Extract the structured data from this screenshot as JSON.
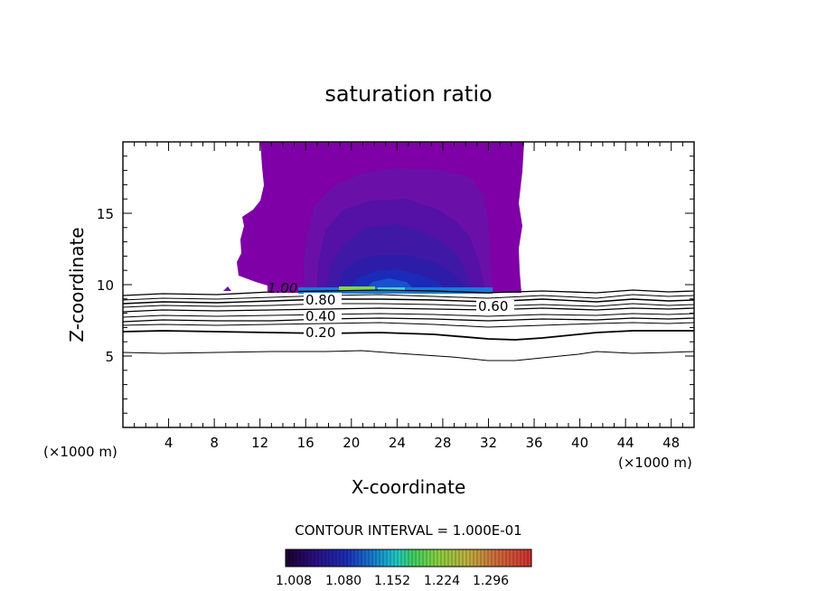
{
  "chart_data": {
    "type": "contour",
    "title": "saturation ratio",
    "xlabel": "X-coordinate",
    "ylabel": "Z-coordinate",
    "x_unit_left": "(×1000 m)",
    "x_unit_right": "(×1000 m)",
    "xlim": [
      0,
      50
    ],
    "ylim": [
      0,
      20
    ],
    "x_ticks": [
      "4",
      "8",
      "12",
      "16",
      "20",
      "24",
      "28",
      "32",
      "36",
      "40",
      "44",
      "48"
    ],
    "y_ticks": [
      "5",
      "10",
      "15"
    ],
    "contour_interval_text": "CONTOUR INTERVAL = 1.000E-01",
    "contour_labels": [
      "1.00",
      "0.80",
      "0.60",
      "0.40",
      "0.20"
    ],
    "colorbar_ticks": [
      "1.008",
      "1.080",
      "1.152",
      "1.224",
      "1.296"
    ],
    "colorbar_colors": [
      "#1a0030",
      "#2a0f80",
      "#1b2fb8",
      "#1680d0",
      "#20c8c8",
      "#40d060",
      "#8ad040",
      "#c0b040",
      "#d06a3a",
      "#d03030"
    ],
    "contour_lines": [
      {
        "level": 1.0,
        "z": 9.5
      },
      {
        "level": 0.9,
        "z": 9.25
      },
      {
        "level": 0.8,
        "z": 9.0
      },
      {
        "level": 0.7,
        "z": 8.75
      },
      {
        "level": 0.6,
        "z": 8.5
      },
      {
        "level": 0.5,
        "z": 8.2
      },
      {
        "level": 0.4,
        "z": 7.9
      },
      {
        "level": 0.3,
        "z": 7.4
      },
      {
        "level": 0.2,
        "z": 6.6
      },
      {
        "level": 0.1,
        "z": 5.2
      }
    ],
    "supersaturated_region": {
      "x_range": [
        11.5,
        35
      ],
      "z_range": [
        9.5,
        20
      ],
      "levels": [
        1.008,
        1.02,
        1.04,
        1.06,
        1.08,
        1.1,
        1.15
      ]
    }
  }
}
